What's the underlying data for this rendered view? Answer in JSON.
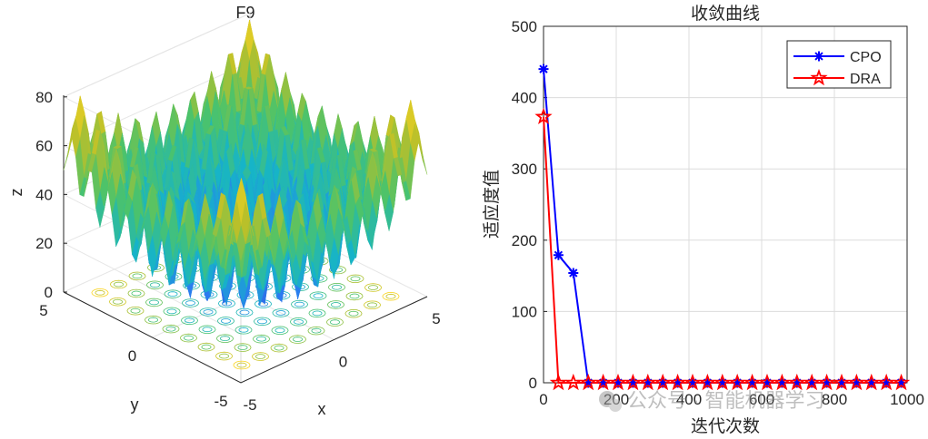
{
  "figure": {
    "left_panel": {
      "title": "F9",
      "xlabel": "x",
      "ylabel": "y",
      "zlabel": "z",
      "x_ticks": [
        "-5",
        "0",
        "5"
      ],
      "y_ticks": [
        "-5",
        "0",
        "5"
      ],
      "z_ticks": [
        "0",
        "20",
        "40",
        "60",
        "80"
      ],
      "surface_colors": [
        "#3e26a8",
        "#2b7bf0",
        "#16b4c8",
        "#4cc36a",
        "#b9c02a",
        "#f9d423"
      ]
    },
    "watermark": "公众号 · 智能机器学习"
  },
  "chart_data": [
    {
      "type": "surface",
      "title": "F9",
      "xlabel": "x",
      "ylabel": "y",
      "zlabel": "z",
      "xlim": [
        -5,
        5
      ],
      "ylim": [
        -5,
        5
      ],
      "zlim": [
        0,
        80
      ],
      "function": "Rastrigin",
      "has_contour_base": true
    },
    {
      "type": "line",
      "title": "收敛曲线",
      "xlabel": "迭代次数",
      "ylabel": "适应度值",
      "xlim": [
        0,
        1000
      ],
      "ylim": [
        0,
        500
      ],
      "x_ticks": [
        0,
        200,
        400,
        600,
        800,
        1000
      ],
      "y_ticks": [
        0,
        100,
        200,
        300,
        400,
        500
      ],
      "grid": true,
      "legend_position": "top-right",
      "series": [
        {
          "name": "CPO",
          "color": "#0000ff",
          "marker": "asterisk",
          "x": [
            0,
            41,
            82,
            123,
            164,
            205,
            246,
            287,
            328,
            369,
            410,
            451,
            492,
            533,
            574,
            615,
            656,
            697,
            738,
            779,
            820,
            861,
            902,
            943,
            984
          ],
          "y": [
            440,
            179,
            154,
            0,
            0,
            0,
            0,
            0,
            0,
            0,
            0,
            0,
            0,
            0,
            0,
            0,
            0,
            0,
            0,
            0,
            0,
            0,
            0,
            0,
            0
          ]
        },
        {
          "name": "DRA",
          "color": "#ff0000",
          "marker": "star",
          "x": [
            0,
            41,
            82,
            123,
            164,
            205,
            246,
            287,
            328,
            369,
            410,
            451,
            492,
            533,
            574,
            615,
            656,
            697,
            738,
            779,
            820,
            861,
            902,
            943,
            984
          ],
          "y": [
            373,
            0,
            0,
            0,
            0,
            0,
            0,
            0,
            0,
            0,
            0,
            0,
            0,
            0,
            0,
            0,
            0,
            0,
            0,
            0,
            0,
            0,
            0,
            0,
            0
          ]
        }
      ]
    }
  ]
}
